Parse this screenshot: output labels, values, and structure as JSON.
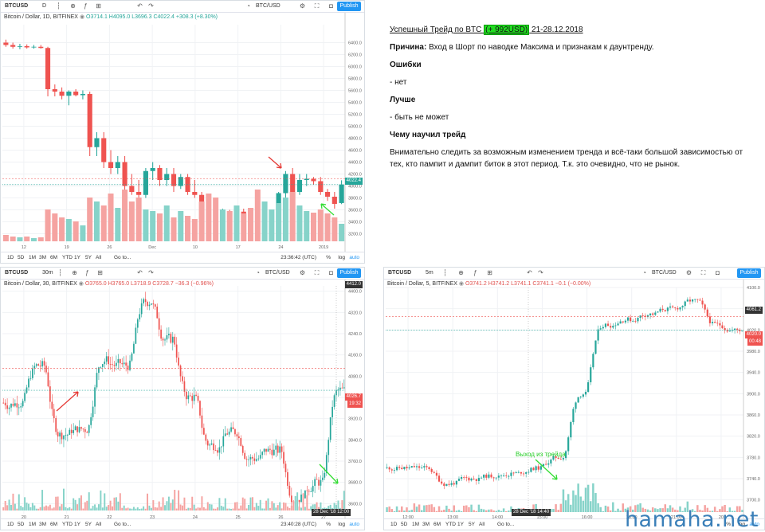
{
  "panel1": {
    "symbol": "BTCUSD",
    "interval": "D",
    "pair": "BTC/USD",
    "publish": "Publish",
    "legend_title": "Bitcoin / Dollar, 1D, BITFINEX",
    "legend_ohlc": "O3714.1  H4095.0  L3696.3  C4022.4  +308.3 (+8.30%)",
    "ranges": [
      "1D",
      "5D",
      "1M",
      "3M",
      "6M",
      "YTD",
      "1Y",
      "5Y",
      "All"
    ],
    "goto": "Go to...",
    "time": "23:36:42 (UTC)",
    "pct": "%",
    "log": "log",
    "auto": "auto",
    "price_tag": "4022.4"
  },
  "panel2": {
    "symbol": "BTCUSD",
    "interval": "30m",
    "pair": "BTC/USD",
    "publish": "Publish",
    "legend_title": "Bitcoin / Dollar, 30, BITFINEX",
    "legend_ohlc": "O3765.0  H3765.0  L3718.9  C3728.7  −36.3 (−0.96%)",
    "ranges": [
      "1D",
      "5D",
      "1M",
      "3M",
      "6M",
      "YTD",
      "1Y",
      "5Y",
      "All"
    ],
    "goto": "Go to...",
    "time": "23:40:28 (UTC)",
    "pct": "%",
    "log": "log",
    "auto": "auto",
    "price_tag_top": "4412.0",
    "price_tag": "4026.7",
    "price_tag_sub": "19:32",
    "date_tag": "28 Dec '18",
    "date_tag2": "12:00"
  },
  "panel3": {
    "symbol": "BTCUSD",
    "interval": "5m",
    "pair": "BTC/USD",
    "publish": "Publish",
    "legend_title": "Bitcoin / Dollar, 5, BITFINEX",
    "legend_ohlc": "O3741.2  H3741.2  L3741.1  C3741.1  −0.1 (−0.00%)",
    "ranges": [
      "1D",
      "5D",
      "1M",
      "3M",
      "6M",
      "YTD",
      "1Y",
      "5Y",
      "All"
    ],
    "goto": "Go to...",
    "pct": "%",
    "log": "log",
    "auto": "auto",
    "annotation": "Выход из трейда",
    "price_tag_top": "4061.2",
    "price_tag": "4020.0",
    "price_tag_sub": "00:48",
    "date_tag": "28 Dec '18",
    "date_tag2": "14:40"
  },
  "doc": {
    "title_pre": "Успешный Трейд по BTC ",
    "title_hl": "(+ 992USD)",
    "title_post": " 21-28.12.2018",
    "reason_label": "Причина:",
    "reason_text": " Вход в Шорт по наводке Максима и признакам к даунтренду.",
    "errors_label": "Ошибки",
    "errors_text": "- нет",
    "better_label": "Лучше",
    "better_text": "- быть не может",
    "learned_label": "Чему научил трейд",
    "learned_text": "Внимательно следить за возможным изменением тренда и всё-таки большой зависимостью от тех, кто пампит и дампит биток в этот период. Т.к. это очевидно, что не рынок."
  },
  "watermark": "hamaha.net",
  "colors": {
    "up": "#26a69a",
    "down": "#ef5350",
    "vol_up": "#86d3c9",
    "vol_down": "#f5a3a1",
    "accent": "#2196f3",
    "arrow_red": "#e53935",
    "arrow_green": "#33dd33"
  },
  "chart_data": [
    {
      "type": "candlestick",
      "name": "Bitcoin / Dollar, 1D, BITFINEX",
      "ylim": [
        3100,
        6700
      ],
      "y_ticks": [
        3200,
        3400,
        3600,
        3800,
        4000,
        4200,
        4400,
        4600,
        4800,
        5000,
        5200,
        5400,
        5600,
        5800,
        6000,
        6200,
        6400
      ],
      "x_ticks": [
        "12",
        "19",
        "26",
        "Dec",
        "10",
        "17",
        "24",
        "2019"
      ],
      "candles": [
        [
          6400,
          6450,
          6330,
          6360
        ],
        [
          6360,
          6400,
          6300,
          6330
        ],
        [
          6330,
          6380,
          6290,
          6340
        ],
        [
          6340,
          6370,
          6300,
          6320
        ],
        [
          6320,
          6360,
          6300,
          6330
        ],
        [
          6330,
          6360,
          6300,
          6310
        ],
        [
          6310,
          6330,
          5500,
          5620
        ],
        [
          5620,
          5700,
          5500,
          5580
        ],
        [
          5580,
          5650,
          5450,
          5510
        ],
        [
          5510,
          5600,
          5350,
          5580
        ],
        [
          5580,
          5620,
          5500,
          5520
        ],
        [
          5520,
          5600,
          5450,
          5540
        ],
        [
          5540,
          5580,
          4500,
          4650
        ],
        [
          4650,
          4900,
          4500,
          4800
        ],
        [
          4800,
          4900,
          4300,
          4400
        ],
        [
          4400,
          4600,
          4200,
          4300
        ],
        [
          4300,
          4500,
          4200,
          4400
        ],
        [
          4400,
          4500,
          3900,
          4000
        ],
        [
          4000,
          4200,
          3850,
          3900
        ],
        [
          3900,
          4100,
          3700,
          3850
        ],
        [
          3850,
          4300,
          3800,
          4250
        ],
        [
          4250,
          4400,
          4100,
          4300
        ],
        [
          4300,
          4350,
          4000,
          4100
        ],
        [
          4100,
          4300,
          4000,
          4200
        ],
        [
          4200,
          4300,
          3900,
          4000
        ],
        [
          4000,
          4200,
          3950,
          4150
        ],
        [
          4150,
          4200,
          3850,
          3900
        ],
        [
          3900,
          4100,
          3800,
          3850
        ],
        [
          3850,
          3900,
          3600,
          3700
        ],
        [
          3700,
          3750,
          3500,
          3550
        ],
        [
          3550,
          3650,
          3400,
          3500
        ],
        [
          3500,
          3620,
          3450,
          3580
        ],
        [
          3580,
          3600,
          3450,
          3520
        ],
        [
          3520,
          3600,
          3480,
          3570
        ],
        [
          3570,
          3620,
          3500,
          3540
        ],
        [
          3540,
          3600,
          3450,
          3500
        ],
        [
          3500,
          3560,
          3200,
          3260
        ],
        [
          3260,
          3500,
          3200,
          3450
        ],
        [
          3450,
          3600,
          3400,
          3580
        ],
        [
          3580,
          3900,
          3550,
          3880
        ],
        [
          3880,
          4250,
          3800,
          4200
        ],
        [
          4200,
          4300,
          3850,
          3900
        ],
        [
          3900,
          4200,
          3850,
          4100
        ],
        [
          4100,
          4200,
          4000,
          4120
        ],
        [
          4120,
          4150,
          4020,
          4080
        ],
        [
          4080,
          4150,
          3850,
          3900
        ],
        [
          3900,
          3950,
          3750,
          3820
        ],
        [
          3820,
          3900,
          3620,
          3700
        ],
        [
          3714.1,
          4095.0,
          3696.3,
          4022.4
        ]
      ],
      "volume_up": "green bars",
      "volume_down": "red bars",
      "current_price": 4022.4
    },
    {
      "type": "candlestick",
      "name": "Bitcoin / Dollar, 30, BITFINEX",
      "ylim": [
        3580,
        4420
      ],
      "y_ticks": [
        3600,
        3680,
        3760,
        3840,
        3920,
        4000,
        4080,
        4160,
        4240,
        4320,
        4400
      ],
      "x_ticks": [
        "20",
        "21",
        "22",
        "23",
        "24",
        "25",
        "26",
        "27"
      ],
      "segments_close": [
        3980,
        4120,
        3860,
        3880,
        4140,
        4120,
        4360,
        4220,
        4000,
        3820,
        3870,
        3770,
        3800,
        3620,
        3680,
        4026.7
      ],
      "current_price": 4026.7
    },
    {
      "type": "candlestick",
      "name": "Bitcoin / Dollar, 5, BITFINEX",
      "ylim": [
        3680,
        4100
      ],
      "y_ticks": [
        3700,
        3740,
        3780,
        3820,
        3860,
        3900,
        3940,
        3980,
        4020,
        4060,
        4100
      ],
      "x_ticks": [
        "12:00",
        "13:00",
        "14:00",
        "15:00",
        "16:00",
        "18:00",
        "21:00",
        "20"
      ],
      "segments_close": [
        3760,
        3760,
        3730,
        3740,
        3745,
        3750,
        3760,
        3780,
        3900,
        4030,
        4040,
        4050,
        4060,
        4075,
        4030,
        4020
      ],
      "current_price": 4020.0
    }
  ]
}
